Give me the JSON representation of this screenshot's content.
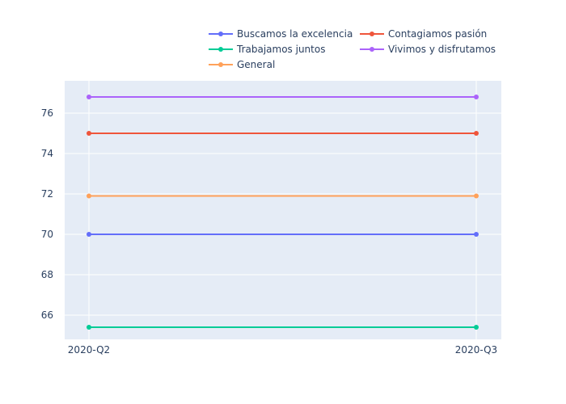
{
  "chart_data": {
    "type": "line",
    "x": [
      "2020-Q2",
      "2020-Q3"
    ],
    "ylim": [
      64.8,
      77.6
    ],
    "yticks": [
      66,
      68,
      70,
      72,
      74,
      76
    ],
    "grid": true,
    "legend_position": "top",
    "plot_background": "#e5ecf6",
    "series": [
      {
        "name": "Buscamos la excelencia",
        "color": "#636efa",
        "values": [
          70.0,
          70.0
        ]
      },
      {
        "name": "Contagiamos pasión",
        "color": "#ef553b",
        "values": [
          75.0,
          75.0
        ]
      },
      {
        "name": "Trabajamos juntos",
        "color": "#00cc96",
        "values": [
          65.4,
          65.4
        ]
      },
      {
        "name": "Vivimos y disfrutamos",
        "color": "#ab63fa",
        "values": [
          76.8,
          76.8
        ]
      },
      {
        "name": "General",
        "color": "#ffa15a",
        "values": [
          71.9,
          71.9
        ]
      }
    ]
  }
}
